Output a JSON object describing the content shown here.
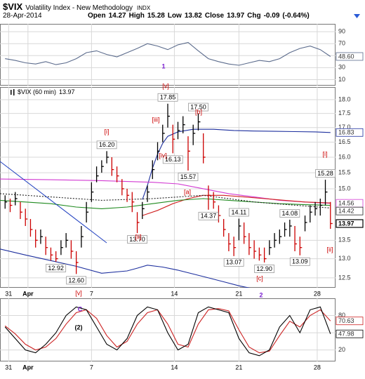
{
  "header": {
    "symbol": "$VIX",
    "name": "Volatility Index - New Methodology",
    "exchange": "INDX",
    "date": "28-Apr-2014",
    "quote": [
      {
        "label": "Open",
        "value": 14.27
      },
      {
        "label": "High",
        "value": 15.28
      },
      {
        "label": "Low",
        "value": 13.82
      },
      {
        "label": "Close",
        "value": 13.97
      },
      {
        "label": "Chg",
        "value": -0.09
      }
    ],
    "chg_pct": {
      "value": -0.64,
      "label": "(-0.64%)"
    }
  },
  "annotations": [
    {
      "text": "[v]",
      "color": "#cc0000"
    },
    {
      "text": "[iii]",
      "color": "#cc0000"
    },
    {
      "text": "[b]",
      "color": "#cc0000"
    },
    {
      "text": "[i]",
      "color": "#cc0000"
    },
    {
      "text": "[iv]",
      "color": "#cc0000"
    },
    {
      "text": "[a]",
      "color": "#cc0000"
    },
    {
      "text": "[ii]",
      "color": "#cc0000"
    },
    {
      "text": "[c]",
      "color": "#cc0000"
    },
    {
      "text": "[v]",
      "color": "#cc0000"
    },
    {
      "text": "[i]",
      "color": "#cc0000"
    },
    {
      "text": "[ii]",
      "color": "#cc0000"
    },
    {
      "text": "1",
      "color": "#7a1fd0"
    },
    {
      "text": "2",
      "color": "#7a1fd0"
    },
    {
      "text": "C",
      "color": "#7a1fd0"
    },
    {
      "text": "(2)",
      "color": "#000000"
    }
  ],
  "chart_data": [
    {
      "type": "line",
      "xlim": [
        0,
        66
      ],
      "ylim": [
        0,
        103
      ],
      "yticks": [
        90,
        70,
        50,
        30,
        10
      ],
      "grid": true,
      "x": [
        1,
        3,
        5,
        7,
        9,
        11,
        13,
        15,
        17,
        19,
        21,
        23,
        25,
        27,
        29,
        31,
        33,
        35,
        37,
        39,
        41,
        43,
        45,
        47,
        49,
        51,
        53,
        55,
        57,
        59,
        61,
        63,
        65
      ],
      "series": [
        {
          "color": "#5b6b8c",
          "end_label": "48.60",
          "values": [
            45,
            42,
            38,
            36,
            40,
            35,
            38,
            45,
            55,
            58,
            52,
            48,
            55,
            62,
            70,
            66,
            60,
            68,
            72,
            58,
            45,
            40,
            36,
            34,
            38,
            42,
            40,
            45,
            55,
            62,
            66,
            60,
            48.6
          ]
        }
      ]
    },
    {
      "type": "hlc",
      "label": "$VIX (60 min)",
      "log": true,
      "grid": true,
      "up_color": "#000000",
      "down_color": "#cc0000",
      "label_last": true,
      "xlim": [
        0,
        66
      ],
      "ylim": [
        12.25,
        18.47
      ],
      "xticks": [
        {
          "value": 1.7,
          "label": "31"
        },
        {
          "value": 5.5,
          "label": "Apr"
        },
        {
          "value": 18,
          "label": "7"
        },
        {
          "value": 34.3,
          "label": "14"
        },
        {
          "value": 47,
          "label": "21"
        },
        {
          "value": 62.4,
          "label": "28"
        }
      ],
      "yticks": [
        {
          "value": 18,
          "label": "18.0"
        },
        17.5,
        {
          "value": 17,
          "label": "17.0"
        },
        16.5,
        {
          "value": 16,
          "label": "16.0"
        },
        15.5,
        {
          "value": 15,
          "label": "15.0"
        },
        13.5,
        {
          "value": 13,
          "label": "13.0"
        },
        12.5
      ],
      "x": [
        1,
        2,
        3,
        4,
        5,
        6,
        7,
        8,
        9,
        10,
        11,
        12,
        13,
        14,
        15,
        16,
        17,
        18,
        19,
        20,
        21,
        22,
        23,
        24,
        25,
        26,
        27,
        28,
        29,
        30,
        31,
        32,
        33,
        34,
        35,
        36,
        37,
        38,
        39,
        40,
        41,
        42,
        43,
        44,
        45,
        46,
        47,
        48,
        49,
        50,
        51,
        52,
        53,
        54,
        55,
        56,
        57,
        58,
        59,
        60,
        61,
        62,
        63,
        64,
        65
      ],
      "high": [
        14.8,
        14.7,
        14.9,
        14.6,
        14.4,
        14.1,
        13.8,
        13.8,
        13.6,
        13.3,
        13.2,
        13.5,
        13.7,
        13.5,
        13.2,
        13.9,
        14.6,
        15.2,
        15.7,
        15.9,
        16.2,
        16.0,
        15.7,
        15.3,
        15.0,
        14.9,
        14.3,
        14.6,
        15.1,
        15.9,
        16.5,
        17.1,
        17.85,
        17.1,
        17.2,
        17.4,
        16.7,
        17.1,
        17.5,
        16.8,
        15.1,
        14.9,
        14.5,
        14.1,
        13.7,
        13.6,
        14.11,
        14.0,
        13.7,
        13.5,
        13.3,
        13.3,
        13.5,
        13.7,
        13.8,
        14.0,
        14.08,
        13.9,
        13.6,
        14.2,
        14.5,
        14.6,
        14.7,
        15.28,
        14.6
      ],
      "low": [
        14.4,
        14.3,
        14.5,
        14.1,
        13.9,
        13.6,
        13.3,
        13.4,
        13.1,
        12.95,
        12.92,
        13.1,
        13.3,
        13.0,
        12.6,
        13.3,
        14.0,
        14.6,
        15.2,
        15.5,
        15.8,
        15.4,
        15.2,
        14.8,
        14.6,
        14.3,
        13.7,
        14.1,
        14.6,
        15.3,
        15.9,
        16.5,
        17.0,
        16.13,
        16.6,
        16.8,
        15.57,
        16.4,
        16.9,
        15.8,
        14.37,
        14.4,
        14.0,
        13.6,
        13.2,
        13.07,
        13.5,
        13.4,
        13.1,
        13.0,
        12.95,
        12.9,
        13.1,
        13.3,
        13.4,
        13.6,
        13.6,
        13.2,
        13.09,
        13.75,
        14.0,
        14.2,
        14.2,
        14.5,
        13.82
      ],
      "close": [
        14.6,
        14.5,
        14.7,
        14.3,
        14.1,
        13.8,
        13.5,
        13.6,
        13.3,
        13.1,
        13.0,
        13.3,
        13.5,
        13.2,
        12.9,
        13.6,
        14.3,
        14.9,
        15.4,
        15.7,
        16.0,
        15.6,
        15.4,
        15.0,
        14.8,
        14.6,
        14.0,
        14.4,
        14.9,
        15.6,
        16.2,
        16.8,
        17.4,
        16.6,
        16.9,
        17.1,
        16.2,
        16.8,
        17.2,
        16.0,
        14.8,
        14.6,
        14.2,
        13.8,
        13.4,
        13.3,
        13.9,
        13.6,
        13.3,
        13.2,
        13.1,
        13.0,
        13.3,
        13.5,
        13.6,
        13.8,
        13.9,
        13.4,
        13.3,
        14.0,
        14.3,
        14.4,
        14.5,
        14.9,
        13.97
      ],
      "overlays": [
        {
          "color": "#1d2f9e",
          "label_last": true,
          "x": [
            28,
            29,
            30,
            31,
            32,
            33,
            35,
            38,
            42,
            46,
            50,
            54,
            58,
            62,
            65
          ],
          "values": [
            14.67,
            15.1,
            15.65,
            16.1,
            16.46,
            16.7,
            16.85,
            16.94,
            16.94,
            16.9,
            16.88,
            16.87,
            16.86,
            16.85,
            16.83
          ]
        },
        {
          "color": "#1d2f9e",
          "x": [
            0,
            5,
            10,
            15,
            20,
            25,
            27,
            29,
            32,
            35,
            38,
            41,
            44,
            47,
            50
          ],
          "values": [
            13.26,
            13.1,
            12.95,
            12.8,
            12.62,
            12.68,
            12.75,
            12.83,
            12.78,
            12.7,
            12.6,
            12.5,
            12.4,
            12.3,
            12.22
          ]
        },
        {
          "color": "#d23ad2",
          "label_last": true,
          "x": [
            0,
            10,
            20,
            30,
            35,
            40,
            45,
            50,
            55,
            60,
            65
          ],
          "values": [
            15.3,
            15.28,
            15.25,
            15.2,
            15.15,
            15.0,
            14.85,
            14.75,
            14.65,
            14.6,
            14.56
          ]
        },
        {
          "color": "#d02020",
          "x": [
            28,
            31,
            34,
            37,
            40,
            44,
            48,
            52,
            56,
            60,
            65
          ],
          "values": [
            14.2,
            14.35,
            14.55,
            14.7,
            14.8,
            14.8,
            14.75,
            14.7,
            14.65,
            14.6,
            14.57
          ]
        },
        {
          "color": "#1f8a1f",
          "x": [
            0,
            5,
            10,
            15,
            20,
            25,
            30,
            35,
            40,
            45,
            50,
            55,
            60,
            65
          ],
          "values": [
            14.65,
            14.6,
            14.55,
            14.45,
            14.4,
            14.45,
            14.55,
            14.65,
            14.7,
            14.65,
            14.6,
            14.55,
            14.52,
            14.5
          ]
        },
        {
          "color": "#222222",
          "dash": "2,2",
          "label_last": true,
          "x": [
            0,
            10,
            20,
            30,
            40,
            50,
            60,
            65
          ],
          "values": [
            14.85,
            14.75,
            14.65,
            14.7,
            14.8,
            14.6,
            14.48,
            14.42
          ]
        }
      ],
      "high_callouts": [
        {
          "value": 16.2,
          "label": "16.20"
        },
        17.85,
        {
          "value": 17.5,
          "label": "17.50"
        },
        14.11,
        14.08,
        15.28
      ],
      "low_callouts": [
        12.92,
        {
          "value": 12.6,
          "label": "12.60"
        },
        {
          "value": 13.7,
          "label": "13.70"
        },
        16.13,
        15.57,
        14.37,
        13.07,
        {
          "value": 12.9,
          "label": "12.90"
        },
        13.09
      ]
    },
    {
      "type": "line",
      "xlim": [
        0,
        66
      ],
      "ylim": [
        0,
        110
      ],
      "yticks": [
        80,
        50,
        20
      ],
      "grid": true,
      "xticks": [
        {
          "value": 1.7,
          "label": "31"
        },
        {
          "value": 5.5,
          "label": "Apr"
        },
        {
          "value": 18,
          "label": "7"
        },
        {
          "value": 34.3,
          "label": "14"
        },
        {
          "value": 47,
          "label": "21"
        },
        {
          "value": 62.4,
          "label": "28"
        }
      ],
      "x": [
        1,
        3,
        5,
        7,
        9,
        11,
        13,
        15,
        17,
        19,
        21,
        23,
        25,
        27,
        29,
        31,
        33,
        35,
        37,
        39,
        41,
        43,
        45,
        47,
        49,
        51,
        53,
        55,
        57,
        59,
        61,
        63,
        65
      ],
      "series": [
        {
          "color": "#cc2222",
          "label_last": true,
          "values": [
            62,
            48,
            30,
            20,
            25,
            40,
            65,
            85,
            90,
            75,
            45,
            25,
            35,
            65,
            85,
            90,
            65,
            30,
            25,
            65,
            90,
            92,
            88,
            55,
            25,
            15,
            18,
            45,
            70,
            60,
            80,
            90,
            70.63
          ]
        },
        {
          "color": "#000000",
          "label_last": true,
          "values": [
            60,
            40,
            20,
            15,
            30,
            50,
            80,
            95,
            90,
            60,
            30,
            20,
            40,
            80,
            95,
            90,
            50,
            20,
            30,
            85,
            95,
            90,
            85,
            40,
            15,
            10,
            20,
            60,
            80,
            50,
            90,
            95,
            47.98
          ]
        }
      ]
    }
  ]
}
